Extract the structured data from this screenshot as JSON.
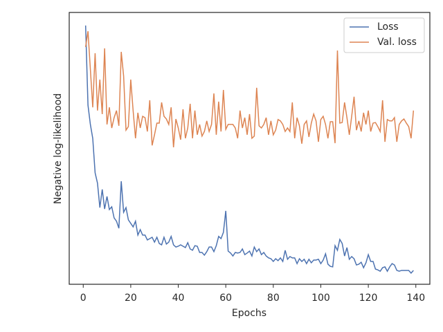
{
  "chart_data": {
    "type": "line",
    "xlabel": "Epochs",
    "ylabel": "Negative log-likelihood",
    "x": [
      1,
      2,
      3,
      4,
      5,
      6,
      7,
      8,
      9,
      10,
      11,
      12,
      13,
      14,
      15,
      16,
      17,
      18,
      19,
      20,
      21,
      22,
      23,
      24,
      25,
      26,
      27,
      28,
      29,
      30,
      31,
      32,
      33,
      34,
      35,
      36,
      37,
      38,
      39,
      40,
      41,
      42,
      43,
      44,
      45,
      46,
      47,
      48,
      49,
      50,
      51,
      52,
      53,
      54,
      55,
      56,
      57,
      58,
      59,
      60,
      61,
      62,
      63,
      64,
      65,
      66,
      67,
      68,
      69,
      70,
      71,
      72,
      73,
      74,
      75,
      76,
      77,
      78,
      79,
      80,
      81,
      82,
      83,
      84,
      85,
      86,
      87,
      88,
      89,
      90,
      91,
      92,
      93,
      94,
      95,
      96,
      97,
      98,
      99,
      100,
      101,
      102,
      103,
      104,
      105,
      106,
      107,
      108,
      109,
      110,
      111,
      112,
      113,
      114,
      115,
      116,
      117,
      118,
      119,
      120,
      121,
      122,
      123,
      124,
      125,
      126,
      127,
      128,
      129,
      130,
      131,
      132,
      133,
      134,
      135,
      136,
      137,
      138,
      139
    ],
    "series": [
      {
        "name": "Loss",
        "color": "#4c72b0",
        "values": [
          95.2,
          65.9,
          58.8,
          53.7,
          41.0,
          37.2,
          28.2,
          34.9,
          27.7,
          32.3,
          27.5,
          28.5,
          24.4,
          23.2,
          20.6,
          37.9,
          26.5,
          28.2,
          23.7,
          22.4,
          21.1,
          23.2,
          18.1,
          20.1,
          18.1,
          18.1,
          16.3,
          16.8,
          17.3,
          15.5,
          17.3,
          15.0,
          14.5,
          17.3,
          14.8,
          15.5,
          17.6,
          14.5,
          13.7,
          14.0,
          14.5,
          14.0,
          13.5,
          15.3,
          13.0,
          12.5,
          14.2,
          14.0,
          11.7,
          11.7,
          10.7,
          12.0,
          13.7,
          13.7,
          12.0,
          14.2,
          17.6,
          16.8,
          19.1,
          27.0,
          12.2,
          11.5,
          10.4,
          11.7,
          11.5,
          11.7,
          13.0,
          10.9,
          11.5,
          12.2,
          10.4,
          13.7,
          12.0,
          13.0,
          10.9,
          11.7,
          10.4,
          9.7,
          9.4,
          8.4,
          9.4,
          8.7,
          9.7,
          8.4,
          12.5,
          9.2,
          10.2,
          9.7,
          9.7,
          7.6,
          9.4,
          8.4,
          9.2,
          7.6,
          9.2,
          7.9,
          8.9,
          8.9,
          9.2,
          7.6,
          8.9,
          11.2,
          7.4,
          6.6,
          6.4,
          14.2,
          12.5,
          16.5,
          15.0,
          10.4,
          13.5,
          9.2,
          10.2,
          9.4,
          7.1,
          7.4,
          8.1,
          6.1,
          7.9,
          10.9,
          8.4,
          8.4,
          5.6,
          5.3,
          4.8,
          6.1,
          6.4,
          4.8,
          6.4,
          7.6,
          7.1,
          5.1,
          4.8,
          5.1,
          5.1,
          5.1,
          5.1,
          4.1,
          5.1
        ]
      },
      {
        "name": "Val. loss",
        "color": "#dd8452",
        "values": [
          87.3,
          93.1,
          79.1,
          65.1,
          85.0,
          63.9,
          75.3,
          62.6,
          86.8,
          58.8,
          65.1,
          57.5,
          61.3,
          63.9,
          58.3,
          85.5,
          76.6,
          56.7,
          58.0,
          75.3,
          63.9,
          53.7,
          63.1,
          57.5,
          61.8,
          61.3,
          56.2,
          67.7,
          51.1,
          55.0,
          59.3,
          59.3,
          66.9,
          61.8,
          60.8,
          58.8,
          65.1,
          50.4,
          60.8,
          57.5,
          53.2,
          64.4,
          53.7,
          57.5,
          66.4,
          53.7,
          63.9,
          55.0,
          58.8,
          54.5,
          56.2,
          60.1,
          56.2,
          58.8,
          70.2,
          55.0,
          67.2,
          56.2,
          71.5,
          57.0,
          58.8,
          58.8,
          58.8,
          57.5,
          53.7,
          63.9,
          57.5,
          61.3,
          55.0,
          62.6,
          53.7,
          54.5,
          72.3,
          58.3,
          57.5,
          58.8,
          61.3,
          55.0,
          60.1,
          55.0,
          56.7,
          60.6,
          60.1,
          58.8,
          56.2,
          57.5,
          56.2,
          66.9,
          53.7,
          61.3,
          58.3,
          51.7,
          58.8,
          60.1,
          54.2,
          59.3,
          62.6,
          60.1,
          52.4,
          60.6,
          61.8,
          58.8,
          53.7,
          59.8,
          59.8,
          51.9,
          86.0,
          59.3,
          59.5,
          66.9,
          61.3,
          55.0,
          61.8,
          69.0,
          56.7,
          60.1,
          56.2,
          63.1,
          58.8,
          63.9,
          56.2,
          59.3,
          59.5,
          58.0,
          56.2,
          67.7,
          52.4,
          60.6,
          60.1,
          60.1,
          61.3,
          52.4,
          58.8,
          60.1,
          60.8,
          59.3,
          58.0,
          53.7,
          63.9
        ]
      }
    ],
    "xlim": [
      -5.9,
      145.9
    ],
    "xticks": [
      0,
      20,
      40,
      60,
      80,
      100,
      120,
      140
    ],
    "ylim": [
      0,
      100
    ],
    "legend": "upper right"
  }
}
